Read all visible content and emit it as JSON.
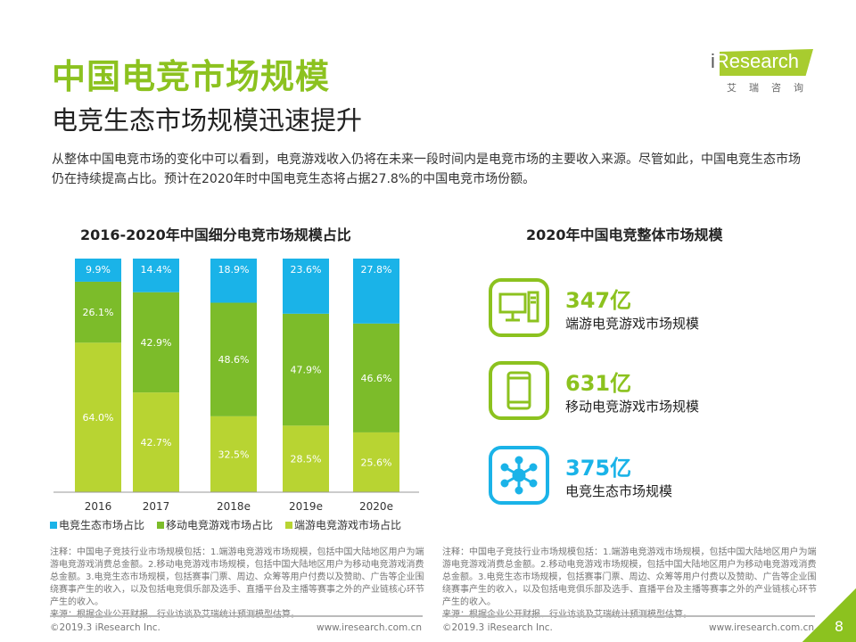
{
  "title": "中国电竞市场规模",
  "subtitle": "电竞生态市场规模迅速提升",
  "description": "从整体中国电竞市场的变化中可以看到，电竞游戏收入仍将在未来一段时间内是电竞市场的主要收入来源。尽管如此，中国电竞生态市场仍在持续提高占比。预计在2020年时中国电竞生态将占据27.8%的中国电竞市场份额。",
  "logo": {
    "text": "iResearch",
    "cn": "艾瑞咨询"
  },
  "colors": {
    "accent": "#8cc21f",
    "ecosystem": "#1ab3e8",
    "mobile": "#7cbc2a",
    "pc": "#b8d432"
  },
  "chart_data": {
    "type": "bar",
    "stacked": true,
    "title": "2016-2020年中国细分电竞市场规模占比",
    "categories": [
      "2016",
      "2017",
      "2018e",
      "2019e",
      "2020e"
    ],
    "series": [
      {
        "name": "端游电竞游戏市场占比",
        "values": [
          64.0,
          42.7,
          32.5,
          28.5,
          25.6
        ],
        "color": "#b8d432"
      },
      {
        "name": "移动电竞游戏市场占比",
        "values": [
          26.1,
          42.9,
          48.6,
          47.9,
          46.6
        ],
        "color": "#7cbc2a"
      },
      {
        "name": "电竞生态市场占比",
        "values": [
          9.9,
          14.4,
          18.9,
          23.6,
          27.8
        ],
        "color": "#1ab3e8"
      }
    ],
    "unit": "%",
    "ylim": [
      0,
      100
    ],
    "legend": "bottom"
  },
  "legend_order": [
    "电竞生态市场占比",
    "移动电竞游戏市场占比",
    "端游电竞游戏市场占比"
  ],
  "right_title": "2020年中国电竞整体市场规模",
  "stats": [
    {
      "value": "347亿",
      "label": "端游电竞游戏市场规模",
      "icon": "desktop-computer-icon"
    },
    {
      "value": "631亿",
      "label": "移动电竞游戏市场规模",
      "icon": "smartphone-icon"
    },
    {
      "value": "375亿",
      "label": "电竞生态市场规模",
      "icon": "network-hub-icon"
    }
  ],
  "notes": "注释：中国电子竞技行业市场规模包括：1.端游电竞游戏市场规模，包括中国大陆地区用户为端游电竞游戏消费总金额。2.移动电竞游戏市场规模，包括中国大陆地区用户为移动电竞游戏消费总金额。3.电竞生态市场规模，包括赛事门票、周边、众筹等用户付费以及赞助、广告等企业围绕赛事产生的收入，以及包括电竞俱乐部及选手、直播平台及主播等赛事之外的产业链核心环节产生的收入。",
  "source": "来源：根据企业公开财报、行业访谈及艾瑞统计预测模型估算。",
  "footer": {
    "copyright": "©2019.3 iResearch Inc.",
    "url": "www.iresearch.com.cn"
  },
  "page_number": "8"
}
